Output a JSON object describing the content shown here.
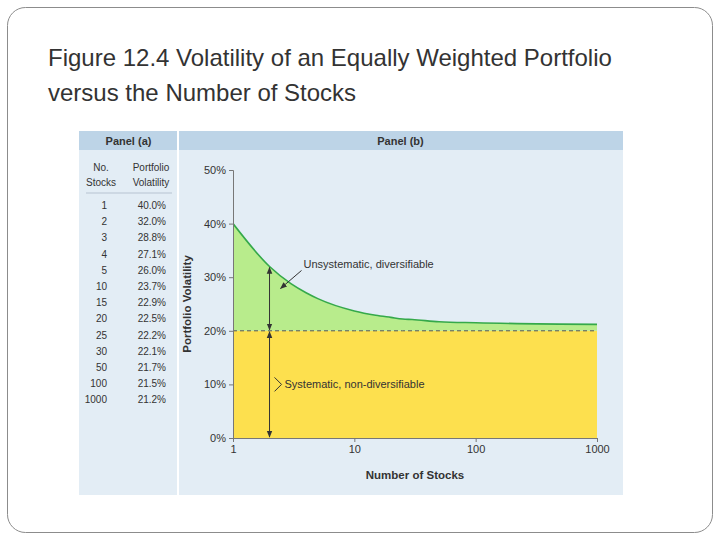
{
  "slide_title": "Figure 12.4 Volatility of an Equally Weighted Portfolio versus the Number of Stocks",
  "panel_a": {
    "header": "Panel (a)",
    "columns": [
      [
        "No.",
        "Stocks"
      ],
      [
        "Portfolio",
        "Volatility"
      ]
    ],
    "rows": [
      [
        "1",
        "40.0%"
      ],
      [
        "2",
        "32.0%"
      ],
      [
        "3",
        "28.8%"
      ],
      [
        "4",
        "27.1%"
      ],
      [
        "5",
        "26.0%"
      ],
      [
        "10",
        "23.7%"
      ],
      [
        "15",
        "22.9%"
      ],
      [
        "20",
        "22.5%"
      ],
      [
        "25",
        "22.2%"
      ],
      [
        "30",
        "22.1%"
      ],
      [
        "50",
        "21.7%"
      ],
      [
        "100",
        "21.5%"
      ],
      [
        "1000",
        "21.2%"
      ]
    ]
  },
  "chart_data": {
    "type": "area",
    "title": "Panel (b)",
    "x_label": "Number of Stocks",
    "y_label": "Portfolio Volatility",
    "x": [
      1,
      2,
      3,
      4,
      5,
      10,
      15,
      20,
      25,
      30,
      50,
      100,
      1000
    ],
    "series": [
      {
        "color": "#b8ec8c",
        "values": [
          40.0,
          32.0,
          28.8,
          27.1,
          26.0,
          23.7,
          22.9,
          22.5,
          22.2,
          22.1,
          21.7,
          21.5,
          21.2
        ]
      },
      {
        "color": "#fde04e",
        "line_style": "dashed",
        "values": [
          20,
          20,
          20,
          20,
          20,
          20,
          20,
          20,
          20,
          20,
          20,
          20,
          20
        ]
      }
    ],
    "annotations": [
      "Unsystematic, diversifiable",
      "Systematic, non-diversifiable"
    ],
    "log": "x",
    "xlim": [
      1,
      1000
    ],
    "xticks": [
      1,
      10,
      100,
      1000
    ],
    "ylim": [
      0,
      50
    ],
    "yticks": [
      {
        "value": 0,
        "label": "0%"
      },
      {
        "value": 10,
        "label": "10%"
      },
      {
        "value": 20,
        "label": "20%"
      },
      {
        "value": 30,
        "label": "30%"
      },
      {
        "value": 40,
        "label": "40%"
      },
      {
        "value": 50,
        "label": "50%"
      }
    ],
    "grid": false
  }
}
